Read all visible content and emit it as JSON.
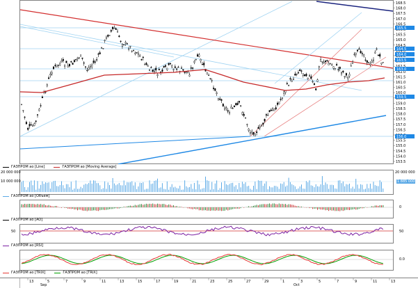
{
  "theme": {
    "price_line": "#d32f2f",
    "ma_line": "#c62828",
    "channel_line": "#1e88e5",
    "trend_dark": "#1a237e",
    "grid": "#9fd3f2",
    "volume": "#5aa9e6",
    "rsi": "#7b1fa2",
    "trix": "#00a000",
    "trix_signal": "#e53935"
  },
  "price_axis_ticks": [
    "168.5",
    "168.0",
    "167.5",
    "167.0",
    "166.5",
    "166.0",
    "165.5",
    "165.0",
    "164.5",
    "164.0",
    "163.5",
    "163.0",
    "162.5",
    "162.0",
    "161.5",
    "161.0",
    "160.5",
    "160.0",
    "159.5",
    "159.0",
    "158.5",
    "158.0",
    "157.5",
    "157.0",
    "156.5",
    "156.0",
    "155.5",
    "155.0",
    "154.5",
    "154.0",
    "153.5"
  ],
  "price_tags": [
    "165.5",
    "164.5",
    "164.0",
    "163.5",
    "163.0",
    "159.5",
    "156.0"
  ],
  "legend_main": [
    {
      "name": "ГАЗПРОМ ао [Line]",
      "color": "#000000"
    },
    {
      "name": "ГАЗПРОМ ао [Moving Average]",
      "color": "#c62828"
    }
  ],
  "volume_axis": {
    "top": "20 000 000",
    "mid": "10 000 000",
    "tag": "1 885 000",
    "right_top": "20 000 000"
  },
  "legend_volume": {
    "name": "ГАЗПРОМ ао [Объем]"
  },
  "legend_ao": {
    "name": "ГАЗПРОМ ао [AO]",
    "zero": "0"
  },
  "legend_rsi": {
    "name": "ГАЗПРОМ ао [RSI]",
    "level": "50"
  },
  "legend_trix": [
    {
      "name": "ГАЗПРОМ ао [TRIX]",
      "color": "#e53935"
    },
    {
      "name": "ГАЗПРОМ ао [TRIX]",
      "color": "#00a000"
    }
  ],
  "trix_zero": "0.0",
  "rsi_left_label": "50",
  "date_axis": {
    "month1": "Sep",
    "month2": "Oct",
    "days": [
      "13",
      "5",
      "7",
      "9",
      "11",
      "13",
      "15",
      "17",
      "19",
      "21",
      "23",
      "25",
      "27",
      "29",
      "1",
      "3",
      "5",
      "7",
      "9",
      "11",
      "13"
    ]
  }
}
